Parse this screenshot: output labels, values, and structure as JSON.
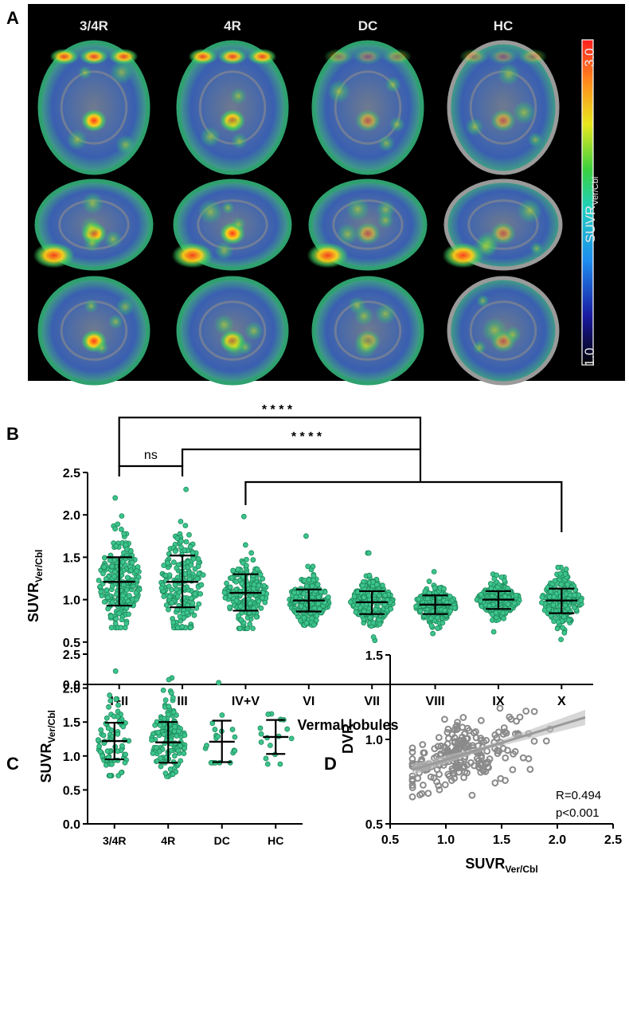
{
  "panels": {
    "A": {
      "label": "A",
      "groups": [
        "3/4R",
        "4R",
        "DC",
        "HC"
      ],
      "colorbar": {
        "max": "3.0",
        "min": "1.0",
        "label_main": "SUVR",
        "label_sub": "Ver/Cbl"
      }
    },
    "B": {
      "label": "B"
    },
    "C": {
      "label": "C"
    },
    "D": {
      "label": "D"
    }
  },
  "chart_data": [
    {
      "panel": "B",
      "type": "scatter",
      "subtype": "dot-plot with mean ± SD",
      "xlabel": "Vermal lobules",
      "ylabel_main": "SUVR",
      "ylabel_sub": "Ver/Cbl",
      "ylim": [
        0,
        2.5
      ],
      "yticks": [
        "0.0",
        "0.5",
        "1.0",
        "1.5",
        "2.0",
        "2.5"
      ],
      "categories": [
        "I+II",
        "III",
        "IV+V",
        "VI",
        "VII",
        "VIII",
        "IX",
        "X"
      ],
      "mean": [
        1.21,
        1.21,
        1.08,
        0.99,
        0.97,
        0.94,
        1.0,
        0.99
      ],
      "sd_low": [
        0.93,
        0.91,
        0.87,
        0.86,
        0.83,
        0.83,
        0.89,
        0.84
      ],
      "sd_high": [
        1.5,
        1.52,
        1.3,
        1.12,
        1.1,
        1.05,
        1.1,
        1.13
      ],
      "min": [
        0.67,
        0.67,
        0.66,
        0.7,
        0.52,
        0.6,
        0.62,
        0.53
      ],
      "max": [
        2.2,
        2.3,
        1.98,
        1.75,
        1.55,
        1.33,
        1.3,
        1.38
      ],
      "n_per_group": 220,
      "point_color": "#3cc48c",
      "point_edge": "#1f8a5c",
      "comparisons": [
        {
          "from": "I+II",
          "to": "III",
          "label": "ns"
        },
        {
          "from": [
            "I+II",
            "III",
            "IV+V"
          ],
          "to": "X",
          "label": "* * * *"
        },
        {
          "from": [
            "III",
            "IV+V"
          ],
          "to": "X",
          "label": "* * * *"
        }
      ]
    },
    {
      "panel": "C",
      "type": "scatter",
      "subtype": "dot-plot with mean ± SD",
      "ylabel_main": "SUVR",
      "ylabel_sub": "Ver/Cbl",
      "ylim": [
        0,
        2.5
      ],
      "yticks": [
        "0.0",
        "0.5",
        "1.0",
        "1.5",
        "2.0",
        "2.5"
      ],
      "categories": [
        "3/4R",
        "4R",
        "DC",
        "HC"
      ],
      "mean": [
        1.22,
        1.2,
        1.21,
        1.28
      ],
      "sd_low": [
        0.95,
        0.9,
        0.91,
        1.03
      ],
      "sd_high": [
        1.49,
        1.5,
        1.52,
        1.53
      ],
      "min": [
        0.71,
        0.7,
        0.9,
        0.88
      ],
      "max": [
        2.25,
        2.15,
        2.08,
        1.62
      ],
      "n": [
        80,
        150,
        20,
        16
      ],
      "point_color": "#3cc48c",
      "point_edge": "#1f8a5c"
    },
    {
      "panel": "D",
      "type": "scatter",
      "xlabel_main": "SUVR",
      "xlabel_sub": "Ver/Cbl",
      "ylabel": "DVR",
      "xlim": [
        0.5,
        2.5
      ],
      "ylim": [
        0.5,
        1.5
      ],
      "xticks": [
        "0.5",
        "1.0",
        "1.5",
        "2.0",
        "2.5"
      ],
      "yticks": [
        "0.5",
        "1.0",
        "1.5"
      ],
      "n_points": 230,
      "regression": {
        "x": [
          0.7,
          2.25
        ],
        "y": [
          0.82,
          1.13
        ]
      },
      "annotation_r": "R=0.494",
      "annotation_p": "p<0.001",
      "point_color": "#8a8a8a"
    }
  ]
}
